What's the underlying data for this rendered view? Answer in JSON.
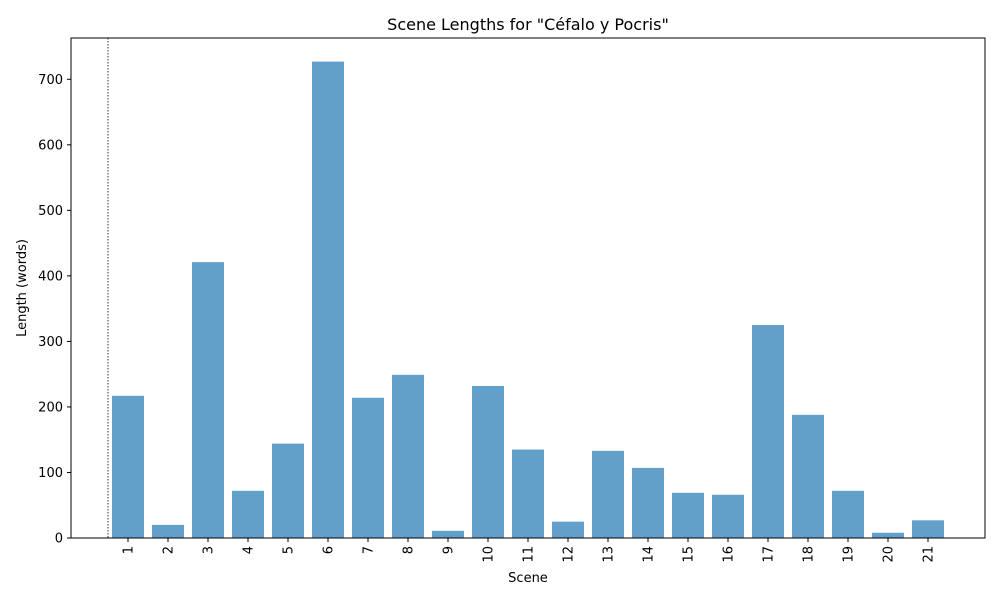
{
  "chart_data": {
    "type": "bar",
    "title": "Scene Lengths for \"Céfalo y Pocris\"",
    "xlabel": "Scene",
    "ylabel": "Length (words)",
    "categories": [
      "1",
      "2",
      "3",
      "4",
      "5",
      "6",
      "7",
      "8",
      "9",
      "10",
      "11",
      "12",
      "13",
      "14",
      "15",
      "16",
      "17",
      "18",
      "19",
      "20",
      "21"
    ],
    "values": [
      217,
      20,
      421,
      72,
      144,
      727,
      214,
      249,
      11,
      232,
      135,
      25,
      133,
      107,
      69,
      66,
      325,
      188,
      72,
      8,
      27
    ],
    "yticks": [
      0,
      100,
      200,
      300,
      400,
      500,
      600,
      700
    ],
    "ylim": [
      0,
      763
    ],
    "bar_color": "#1f77b4",
    "bar_opacity": 0.7,
    "grid": false,
    "reference_line": {
      "style": "dotted",
      "color": "#000000",
      "position": "left of scene 1"
    }
  }
}
